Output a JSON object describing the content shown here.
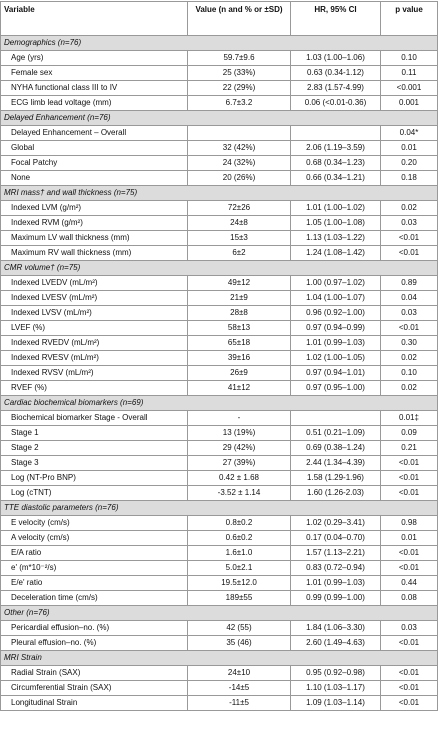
{
  "table": {
    "columns": [
      "Variable",
      "Value (n and % or ±SD)",
      "HR, 95% CI",
      "p value"
    ],
    "sections": [
      {
        "title": "Demographics (n=76)",
        "rows": [
          [
            "Age (yrs)",
            "59.7±9.6",
            "1.03 (1.00–1.06)",
            "0.10"
          ],
          [
            "Female sex",
            "25 (33%)",
            "0.63 (0.34-1.12)",
            "0.11"
          ],
          [
            "NYHA functional class III to IV",
            "22 (29%)",
            "2.83 (1.57-4.99)",
            "<0.001"
          ],
          [
            "ECG limb lead voltage (mm)",
            "6.7±3.2",
            "0.06 (<0.01-0.36)",
            "0.001"
          ]
        ]
      },
      {
        "title": "Delayed Enhancement (n=76)",
        "rows": [
          [
            "Delayed Enhancement – Overall",
            null,
            null,
            "0.04*"
          ],
          [
            "Global",
            "32 (42%)",
            "2.06 (1.19–3.59)",
            "0.01"
          ],
          [
            "Focal Patchy",
            "24 (32%)",
            "0.68 (0.34–1.23)",
            "0.20"
          ],
          [
            "None",
            "20 (26%)",
            "0.66 (0.34–1.21)",
            "0.18"
          ]
        ]
      },
      {
        "title": "MRI mass† and wall thickness (n=75)",
        "rows": [
          [
            "Indexed LVM (g/m²)",
            "72±26",
            "1.01 (1.00–1.02)",
            "0.02"
          ],
          [
            "Indexed RVM (g/m²)",
            "24±8",
            "1.05 (1.00–1.08)",
            "0.03"
          ],
          [
            "Maximum LV wall thickness (mm)",
            "15±3",
            "1.13 (1.03–1.22)",
            "<0.01"
          ],
          [
            "Maximum RV wall thickness (mm)",
            "6±2",
            "1.24 (1.08–1.42)",
            "<0.01"
          ]
        ]
      },
      {
        "title": "CMR volume† (n=75)",
        "rows": [
          [
            "Indexed LVEDV (mL/m²)",
            "49±12",
            "1.00 (0.97–1.02)",
            "0.89"
          ],
          [
            "Indexed LVESV (mL/m²)",
            "21±9",
            "1.04 (1.00–1.07)",
            "0.04"
          ],
          [
            "Indexed LVSV (mL/m²)",
            "28±8",
            "0.96 (0.92–1.00)",
            "0.03"
          ],
          [
            "LVEF (%)",
            "58±13",
            "0.97 (0.94–0.99)",
            "<0.01"
          ],
          [
            "Indexed RVEDV (mL/m²)",
            "65±18",
            "1.01 (0.99–1.03)",
            "0.30"
          ],
          [
            "Indexed RVESV (mL/m²)",
            "39±16",
            "1.02 (1.00–1.05)",
            "0.02"
          ],
          [
            "Indexed RVSV (mL/m²)",
            "26±9",
            "0.97 (0.94–1.01)",
            "0.10"
          ],
          [
            "RVEF (%)",
            "41±12",
            "0.97 (0.95–1.00)",
            "0.02"
          ]
        ]
      },
      {
        "title": "Cardiac biochemical biomarkers (n=69)",
        "rows": [
          [
            "Biochemical biomarker Stage - Overall",
            "-",
            null,
            "0.01‡"
          ],
          [
            "Stage 1",
            "13 (19%)",
            "0.51 (0.21–1.09)",
            "0.09"
          ],
          [
            "Stage 2",
            "29 (42%)",
            "0.69 (0.38–1.24)",
            "0.21"
          ],
          [
            "Stage 3",
            "27 (39%)",
            "2.44 (1.34–4.39)",
            "<0.01"
          ],
          [
            "Log (NT-Pro BNP)",
            "0.42 ± 1.68",
            "1.58 (1.29-1.96)",
            "<0.01"
          ],
          [
            "Log (cTNT)",
            "-3.52 ± 1.14",
            "1.60 (1.26-2.03)",
            "<0.01"
          ]
        ]
      },
      {
        "title": "TTE diastolic parameters (n=76)",
        "rows": [
          [
            "E velocity (cm/s)",
            "0.8±0.2",
            "1.02 (0.29–3.41)",
            "0.98"
          ],
          [
            "A velocity (cm/s)",
            "0.6±0.2",
            "0.17 (0.04–0.70)",
            "0.01"
          ],
          [
            "E/A ratio",
            "1.6±1.0",
            "1.57 (1.13–2.21)",
            "<0.01"
          ],
          [
            "e' (m*10⁻²/s)",
            "5.0±2.1",
            "0.83 (0.72–0.94)",
            "<0.01"
          ],
          [
            "E/e' ratio",
            "19.5±12.0",
            "1.01 (0.99–1.03)",
            "0.44"
          ],
          [
            "Deceleration time (cm/s)",
            "189±55",
            "0.99 (0.99–1.00)",
            "0.08"
          ]
        ]
      },
      {
        "title": "Other (n=76)",
        "rows": [
          [
            "Pericardial effusion–no. (%)",
            "42 (55)",
            "1.84 (1.06–3.30)",
            "0.03"
          ],
          [
            "Pleural effusion–no. (%)",
            "35 (46)",
            "2.60 (1.49–4.63)",
            "<0.01"
          ]
        ]
      },
      {
        "title": "MRI Strain",
        "rows": [
          [
            "Radial Strain (SAX)",
            "24±10",
            "0.95 (0.92–0.98)",
            "<0.01"
          ],
          [
            "Circumferential Strain (SAX)",
            "-14±5",
            "1.10 (1.03–1.17)",
            "<0.01"
          ],
          [
            "Longitudinal Strain",
            "-11±5",
            "1.09 (1.03–1.14)",
            "<0.01"
          ]
        ]
      }
    ]
  }
}
